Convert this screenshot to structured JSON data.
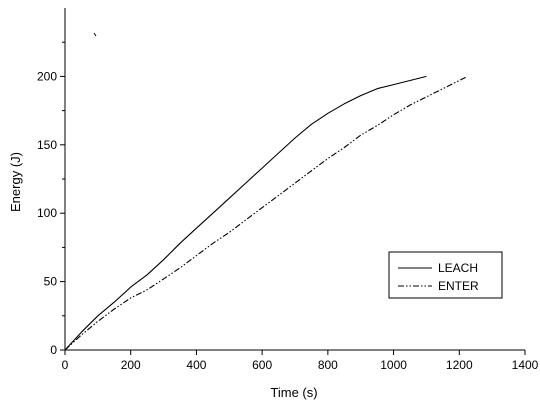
{
  "chart_data": {
    "type": "line",
    "title": "",
    "xlabel": "Time (s)",
    "ylabel": "Energy (J)",
    "xlim": [
      0,
      1400
    ],
    "ylim": [
      0,
      250
    ],
    "xticks": [
      0,
      200,
      400,
      600,
      800,
      1000,
      1200,
      1400
    ],
    "yticks": [
      0,
      50,
      100,
      150,
      200
    ],
    "grid": false,
    "legend_position": "bottom-right",
    "series": [
      {
        "name": "LEACH",
        "style": "solid",
        "color": "#000000",
        "x": [
          0,
          50,
          100,
          150,
          200,
          250,
          300,
          350,
          400,
          450,
          500,
          550,
          600,
          650,
          700,
          750,
          800,
          850,
          900,
          950,
          1000,
          1050,
          1100
        ],
        "y": [
          0,
          13,
          25,
          35,
          46,
          55,
          66,
          78,
          89,
          100,
          111,
          122,
          133,
          144,
          155,
          165,
          173,
          180,
          186,
          191,
          194,
          197,
          200
        ]
      },
      {
        "name": "ENTER",
        "style": "dash-dot-dot",
        "color": "#000000",
        "x": [
          0,
          50,
          100,
          150,
          200,
          250,
          300,
          350,
          400,
          450,
          500,
          550,
          600,
          650,
          700,
          750,
          800,
          850,
          900,
          950,
          1000,
          1050,
          1100,
          1150,
          1200,
          1225
        ],
        "y": [
          0,
          11,
          21,
          30,
          38,
          44,
          52,
          60,
          69,
          78,
          86,
          95,
          104,
          113,
          122,
          131,
          140,
          148,
          157,
          164,
          172,
          179,
          185,
          191,
          197,
          200
        ]
      }
    ]
  }
}
